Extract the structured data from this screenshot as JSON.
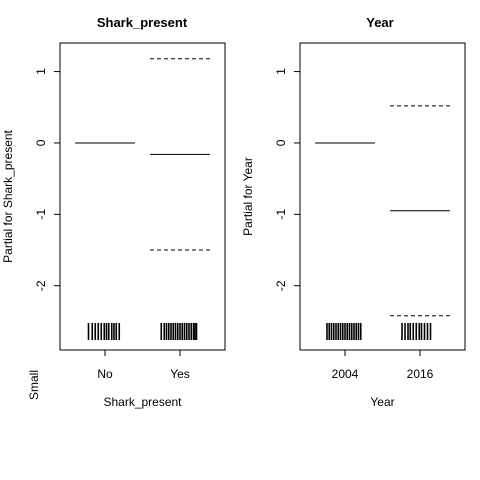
{
  "chart_data": [
    {
      "type": "partial-effects",
      "title": "Shark_present",
      "xlabel": "Shark_present",
      "ylabel": "Partial for Shark_present",
      "categories": [
        "No",
        "Yes"
      ],
      "fit": [
        0,
        -0.16
      ],
      "upper": [
        null,
        1.18
      ],
      "lower": [
        null,
        -1.5
      ],
      "ylim": [
        -2.9,
        1.4
      ],
      "yticks": [
        1,
        0,
        -1,
        -2
      ],
      "ytick_labels": [
        "1",
        "0",
        "-1",
        "-2"
      ],
      "rug": [
        [
          0.78,
          0.83,
          0.87,
          0.91,
          0.95,
          0.99,
          1.02,
          1.05,
          1.09,
          1.12,
          1.15,
          1.19
        ],
        [
          1.75,
          1.79,
          1.82,
          1.85,
          1.88,
          1.91,
          1.94,
          1.97,
          2.0,
          2.03,
          2.06,
          2.09,
          2.12,
          2.15,
          2.18,
          2.2,
          2.22
        ]
      ]
    },
    {
      "type": "partial-effects",
      "title": "Year",
      "xlabel": "Year",
      "ylabel": "Partial for Year",
      "categories": [
        "2004",
        "2016"
      ],
      "fit": [
        0,
        -0.95
      ],
      "upper": [
        null,
        0.52
      ],
      "lower": [
        null,
        -2.42
      ],
      "ylim": [
        -2.9,
        1.4
      ],
      "yticks": [
        1,
        0,
        -1,
        -2
      ],
      "ytick_labels": [
        "1",
        "0",
        "-1",
        "-2"
      ],
      "rug": [
        [
          0.76,
          0.79,
          0.82,
          0.85,
          0.88,
          0.91,
          0.94,
          0.97,
          1.0,
          1.03,
          1.06,
          1.09,
          1.12,
          1.15,
          1.18,
          1.21
        ],
        [
          1.76,
          1.8,
          1.84,
          1.87,
          1.91,
          1.95,
          1.99,
          2.02,
          2.06,
          2.1,
          2.14
        ]
      ]
    }
  ],
  "page_text": {
    "corner_label": "Small"
  }
}
